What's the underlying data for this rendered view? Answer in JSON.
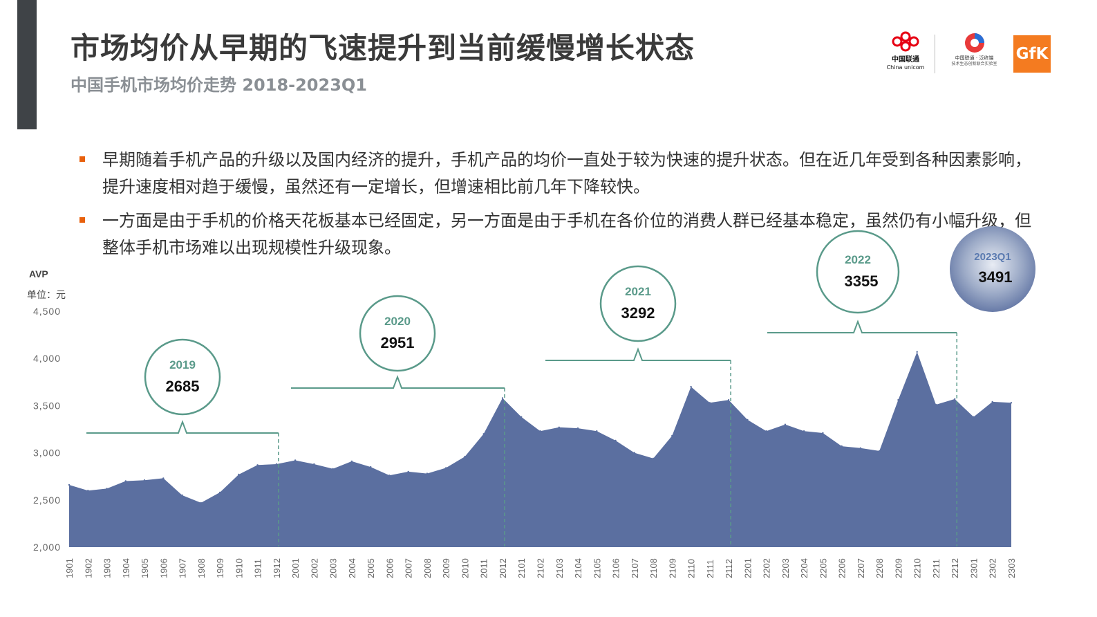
{
  "header": {
    "title": "市场均价从早期的飞速提升到当前缓慢增长状态",
    "subtitle": "中国手机市场均价走势 2018-2023Q1"
  },
  "logos": {
    "china_unicom": {
      "name": "中国联通",
      "name_en": "China unicom",
      "icon": "china-unicom-knot-icon",
      "color": "#e60012"
    },
    "lab": {
      "name": "中国联通 · 泛终端",
      "sub": "技术生态创新联合实验室",
      "icon": "lab-globe-icon"
    },
    "gfk": {
      "text": "GfK",
      "color": "#f47b20"
    }
  },
  "bullets": [
    {
      "text": "早期随着手机产品的升级以及国内经济的提升，手机产品的均价一直处于较为快速的提升状态。但在近几年受到各种因素影响，提升速度相对趋于缓慢，虽然还有一定增长，但增速相比前几年下降较快。"
    },
    {
      "text": "一方面是由于手机的价格天花板基本已经固定，另一方面是由于手机在各价位的消费人群已经基本稳定，虽然仍有小幅升级，但整体手机市场难以出现规模性升级现象。"
    }
  ],
  "chart_data": {
    "type": "area",
    "ylabel": "AVP",
    "unit_label": "单位：元",
    "ylim": [
      2000,
      4500
    ],
    "yticks": [
      2000,
      2500,
      3000,
      3500,
      4000,
      4500
    ],
    "ytick_labels": [
      "2,000",
      "2,500",
      "3,000",
      "3,500",
      "4,000",
      "4,500"
    ],
    "grid": false,
    "area_color": "#5b6fa0",
    "bracket_color": "#5a9a8a",
    "x": [
      "1901",
      "1902",
      "1903",
      "1904",
      "1905",
      "1906",
      "1907",
      "1908",
      "1909",
      "1910",
      "1911",
      "1912",
      "2001",
      "2002",
      "2003",
      "2004",
      "2005",
      "2006",
      "2007",
      "2008",
      "2009",
      "2010",
      "2011",
      "2012",
      "2101",
      "2102",
      "2103",
      "2104",
      "2105",
      "2106",
      "2107",
      "2108",
      "2109",
      "2110",
      "2111",
      "2112",
      "2201",
      "2202",
      "2203",
      "2204",
      "2205",
      "2206",
      "2207",
      "2208",
      "2209",
      "2210",
      "2211",
      "2212",
      "2301",
      "2302",
      "2303"
    ],
    "values": [
      2660,
      2600,
      2620,
      2700,
      2710,
      2730,
      2550,
      2470,
      2580,
      2770,
      2870,
      2880,
      2920,
      2880,
      2830,
      2910,
      2850,
      2760,
      2800,
      2780,
      2840,
      2960,
      3200,
      3580,
      3380,
      3230,
      3270,
      3260,
      3230,
      3130,
      3000,
      2940,
      3180,
      3700,
      3530,
      3560,
      3350,
      3230,
      3300,
      3230,
      3210,
      3070,
      3050,
      3020,
      3560,
      4070,
      3510,
      3570,
      3380,
      3540,
      3530
    ],
    "annotations": [
      {
        "label": "2019",
        "value": "2685",
        "start": "1901",
        "end": "1912",
        "style": "ring"
      },
      {
        "label": "2020",
        "value": "2951",
        "start": "2001",
        "end": "2012",
        "style": "ring"
      },
      {
        "label": "2021",
        "value": "3292",
        "start": "2101",
        "end": "2112",
        "style": "ring"
      },
      {
        "label": "2022",
        "value": "3355",
        "start": "2201",
        "end": "2212",
        "style": "ring"
      },
      {
        "label": "2023Q1",
        "value": "3491",
        "start": "2301",
        "end": "2303",
        "style": "sphere"
      }
    ]
  }
}
